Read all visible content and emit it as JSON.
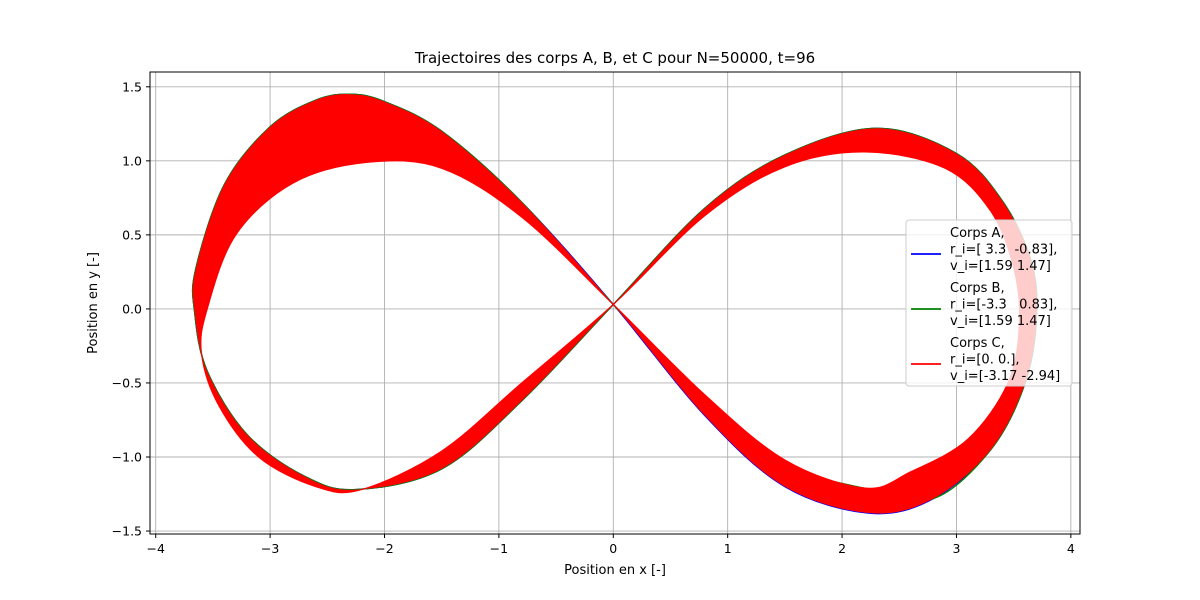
{
  "chart_data": {
    "type": "line",
    "title": "Trajectoires des corps A, B, et C pour N=50000, t=96",
    "xlabel": "Position en x [-]",
    "ylabel": "Position en y [-]",
    "xlim": [
      -4.05,
      4.08
    ],
    "ylim": [
      -1.52,
      1.6
    ],
    "grid": true,
    "legend_position": "center-right",
    "x_ticks": [
      {
        "value": -4,
        "label": "−4"
      },
      {
        "value": -3,
        "label": "−3"
      },
      {
        "value": -2,
        "label": "−2"
      },
      {
        "value": -1,
        "label": "−1"
      },
      {
        "value": 0,
        "label": "0"
      },
      {
        "value": 1,
        "label": "1"
      },
      {
        "value": 2,
        "label": "2"
      },
      {
        "value": 3,
        "label": "3"
      },
      {
        "value": 4,
        "label": "4"
      }
    ],
    "y_ticks": [
      {
        "value": -1.5,
        "label": "−1.5"
      },
      {
        "value": -1.0,
        "label": "−1.0"
      },
      {
        "value": -0.5,
        "label": "−0.5"
      },
      {
        "value": 0.0,
        "label": "0.0"
      },
      {
        "value": 0.5,
        "label": "0.5"
      },
      {
        "value": 1.0,
        "label": "1.0"
      },
      {
        "value": 1.5,
        "label": "1.5"
      }
    ],
    "series": [
      {
        "name": "Corps A,\nr_i=[ 3.3  -0.83],\nv_i=[1.59 1.47]",
        "legend_lines": [
          "Corps A,",
          "r_i=[ 3.3  -0.83],",
          "v_i=[1.59 1.47]"
        ],
        "color": "#0000ff",
        "outer_x": [
          0,
          -0.8,
          -1.5,
          -2.0,
          -2.3,
          -2.6,
          -3.0,
          -3.4,
          -3.65,
          -3.66,
          -3.55,
          -3.2,
          -2.7,
          -2.25,
          -1.5,
          -0.8,
          0,
          0.8,
          1.5,
          2.3,
          3.0,
          3.4,
          3.65,
          3.7,
          3.6,
          3.3,
          2.8,
          2.25,
          1.5,
          0.8,
          0
        ],
        "outer_y": [
          0.03,
          0.72,
          1.2,
          1.4,
          1.45,
          1.41,
          1.23,
          0.84,
          0.27,
          -0.02,
          -0.42,
          -0.85,
          -1.13,
          -1.22,
          -1.08,
          -0.62,
          0.03,
          0.68,
          1.04,
          1.22,
          1.05,
          0.73,
          0.33,
          -0.05,
          -0.5,
          -0.95,
          -1.28,
          -1.38,
          -1.2,
          -0.72,
          0.03
        ]
      },
      {
        "name": "Corps B,\nr_i=[-3.3   0.83],\nv_i=[1.59 1.47]",
        "legend_lines": [
          "Corps B,",
          "r_i=[-3.3   0.83],",
          "v_i=[1.59 1.47]"
        ],
        "color": "#008000",
        "outer_x": [
          0,
          -0.8,
          -1.5,
          -2.0,
          -2.3,
          -2.6,
          -3.0,
          -3.4,
          -3.65,
          -3.66,
          -3.55,
          -3.2,
          -2.7,
          -2.25,
          -1.5,
          -0.8,
          0,
          0.8,
          1.5,
          2.3,
          3.0,
          3.4,
          3.65,
          3.7,
          3.6,
          3.3,
          2.8,
          2.25,
          1.5,
          0.8,
          0
        ],
        "outer_y": [
          0.03,
          0.72,
          1.2,
          1.4,
          1.45,
          1.41,
          1.23,
          0.84,
          0.27,
          -0.02,
          -0.42,
          -0.85,
          -1.13,
          -1.22,
          -1.08,
          -0.62,
          0.03,
          0.68,
          1.04,
          1.22,
          1.05,
          0.73,
          0.33,
          -0.05,
          -0.5,
          -0.95,
          -1.28,
          -1.22,
          -1.05,
          -0.62,
          0.03
        ]
      },
      {
        "name": "Corps C,\nr_i=[0. 0.],\nv_i=[-3.17 -2.94]",
        "legend_lines": [
          "Corps C,",
          "r_i=[0. 0.],",
          "v_i=[-3.17 -2.94]"
        ],
        "color": "#ff0000",
        "outer_x": [
          0,
          -0.8,
          -1.5,
          -2.0,
          -2.3,
          -2.6,
          -3.0,
          -3.4,
          -3.65,
          -3.66,
          -3.55,
          -3.2,
          -2.7,
          -2.25,
          -1.5,
          -0.8,
          0,
          0.8,
          1.5,
          2.3,
          3.0,
          3.4,
          3.65,
          3.7,
          3.6,
          3.3,
          2.8,
          2.25,
          1.5,
          0.8,
          0
        ],
        "outer_y": [
          0.03,
          0.72,
          1.2,
          1.4,
          1.45,
          1.41,
          1.23,
          0.84,
          0.27,
          -0.02,
          -0.42,
          -0.85,
          -1.13,
          -1.22,
          -1.08,
          -0.62,
          0.03,
          0.68,
          1.04,
          1.22,
          1.05,
          0.73,
          0.33,
          -0.05,
          -0.5,
          -0.95,
          -1.28,
          -1.38,
          -1.2,
          -0.72,
          0.03
        ],
        "inner_x": [
          0,
          0.8,
          1.5,
          2.2,
          2.9,
          3.3,
          3.5,
          3.55,
          3.45,
          3.1,
          2.6,
          2.2,
          1.5,
          0.8,
          0,
          -0.8,
          -1.5,
          -2.15,
          -2.8,
          -3.3,
          -3.55,
          -3.6,
          -3.45,
          -3.1,
          -2.6,
          -2.2,
          -1.5,
          -0.8,
          0
        ],
        "inner_y": [
          0.03,
          0.63,
          0.96,
          1.06,
          0.95,
          0.66,
          0.28,
          -0.1,
          -0.5,
          -0.88,
          -1.1,
          -1.21,
          -1.02,
          -0.58,
          0.03,
          0.62,
          0.95,
          0.99,
          0.85,
          0.5,
          0.0,
          -0.3,
          -0.65,
          -1.0,
          -1.2,
          -1.22,
          -0.96,
          -0.5,
          0.03
        ]
      }
    ]
  }
}
